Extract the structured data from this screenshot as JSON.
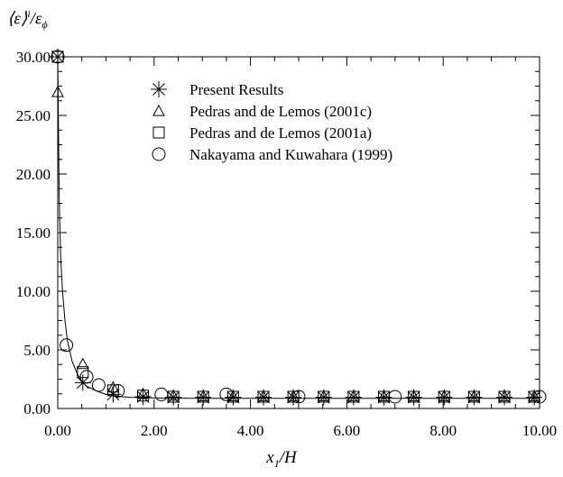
{
  "chart_data": {
    "type": "scatter",
    "title": "",
    "ylabel": {
      "base": "⟨ε⟩",
      "sup": "i",
      "divider": "/",
      "var": "ε",
      "sub": "ϕ"
    },
    "xlabel": {
      "var": "x",
      "sub": "1",
      "rest": "/H"
    },
    "xlim": [
      0,
      10
    ],
    "ylim": [
      0,
      30
    ],
    "xticks": [
      "0.00",
      "2.00",
      "4.00",
      "6.00",
      "8.00",
      "10.00"
    ],
    "yticks": [
      "0.00",
      "5.00",
      "10.00",
      "15.00",
      "20.00",
      "25.00",
      "30.00"
    ],
    "grid": false,
    "legend_position": "top-left",
    "curve": {
      "x": [
        0.0,
        0.03,
        0.06,
        0.1,
        0.15,
        0.2,
        0.3,
        0.4,
        0.5,
        0.6,
        0.8,
        1.0,
        1.2,
        1.5,
        2.0,
        2.5,
        3.0,
        4.0,
        5.0,
        6.0,
        7.0,
        8.0,
        9.0,
        10.0
      ],
      "y": [
        30.0,
        18.0,
        13.0,
        10.0,
        7.5,
        5.8,
        4.0,
        3.0,
        2.3,
        1.9,
        1.5,
        1.2,
        1.05,
        0.95,
        0.9,
        0.88,
        0.87,
        0.87,
        0.87,
        0.87,
        0.87,
        0.87,
        0.87,
        0.87
      ]
    },
    "series": [
      {
        "name": "Present Results",
        "marker": "asterisk",
        "x": [
          0.0,
          0.52,
          1.15,
          1.77,
          2.4,
          3.02,
          3.64,
          4.27,
          4.89,
          5.52,
          6.14,
          6.77,
          7.39,
          8.02,
          8.64,
          9.27,
          9.89
        ],
        "y": [
          30.0,
          2.2,
          1.2,
          1.0,
          0.95,
          0.95,
          0.95,
          0.95,
          0.95,
          0.95,
          0.95,
          0.95,
          0.95,
          0.95,
          0.95,
          0.95,
          0.95
        ]
      },
      {
        "name": "Pedras and de Lemos (2001c)",
        "marker": "triangle",
        "x": [
          0.0,
          0.52,
          1.15,
          1.77,
          2.4,
          3.02,
          3.64,
          4.27,
          4.89,
          5.52,
          6.14,
          6.77,
          7.39,
          8.02,
          8.64,
          9.27,
          9.89
        ],
        "y": [
          27.0,
          3.8,
          1.8,
          1.25,
          1.1,
          1.05,
          1.05,
          1.05,
          1.05,
          1.05,
          1.05,
          1.05,
          1.05,
          1.05,
          1.05,
          1.05,
          1.05
        ]
      },
      {
        "name": "Pedras and de Lemos (2001a)",
        "marker": "square",
        "x": [
          0.0,
          0.52,
          1.15,
          1.77,
          2.4,
          3.02,
          3.64,
          4.27,
          4.89,
          5.52,
          6.14,
          6.77,
          7.39,
          8.02,
          8.64,
          9.27,
          9.89
        ],
        "y": [
          30.0,
          3.1,
          1.55,
          1.1,
          1.0,
          1.0,
          1.0,
          1.0,
          1.0,
          1.0,
          1.0,
          1.0,
          1.0,
          1.0,
          1.0,
          1.0,
          1.0
        ]
      },
      {
        "name": "Nakayama and Kuwahara (1999)",
        "marker": "circle",
        "x": [
          0.0,
          0.18,
          0.6,
          0.85,
          1.25,
          2.15,
          3.5,
          5.0,
          7.0,
          10.0
        ],
        "y": [
          30.0,
          5.4,
          2.7,
          2.0,
          1.5,
          1.2,
          1.2,
          1.0,
          1.0,
          1.0
        ]
      }
    ]
  }
}
